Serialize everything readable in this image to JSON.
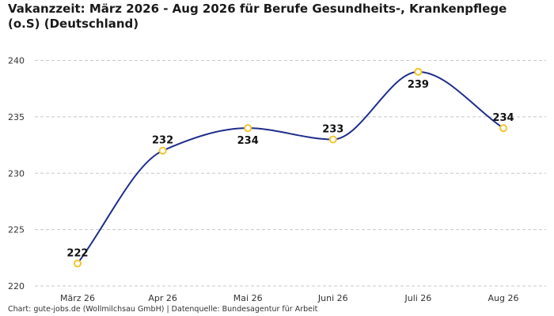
{
  "chart_data": {
    "type": "line",
    "title": "Vakanzzeit: März 2026 - Aug 2026 für Berufe Gesundheits-, Krankenpflege (o.S) (Deutschland)",
    "xlabel": "",
    "ylabel": "",
    "categories": [
      "März 26",
      "Apr 26",
      "Mai 26",
      "Juni 26",
      "Juli 26",
      "Aug 26"
    ],
    "series": [
      {
        "values": [
          222,
          232,
          234,
          233,
          239,
          234
        ]
      }
    ],
    "ylim": [
      220,
      242
    ],
    "yticks": [
      220,
      225,
      230,
      235,
      240
    ],
    "grid": true,
    "smooth": true,
    "line_color": "#1f2d8a",
    "marker_color": "#f2c530",
    "grid_color": "#c8c8c8"
  },
  "footer": {
    "source": "Chart: gute-jobs.de (Wollmilchsau GmbH) | Datenquelle: Bundesagentur für Arbeit"
  }
}
